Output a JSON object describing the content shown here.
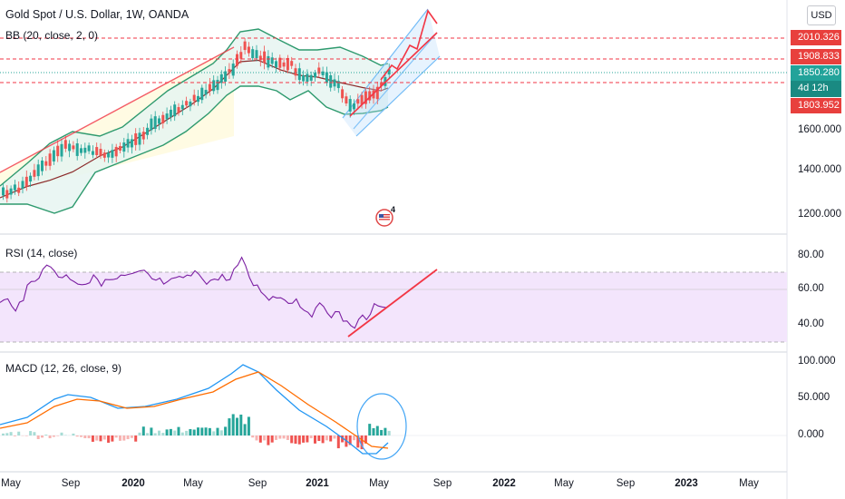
{
  "header": {
    "symbol_title": "Gold Spot / U.S. Dollar, 1W, OANDA",
    "currency_button": "USD"
  },
  "indicators": {
    "bollinger_label": "BB (20, close, 2, 0)",
    "rsi_label": "RSI (14, close)",
    "macd_label": "MACD (12, 26, close, 9)"
  },
  "price_badges": {
    "level_1": "2010.326",
    "level_2": "1908.833",
    "last_price": "1850.280",
    "countdown": "4d 12h",
    "level_3": "1803.952"
  },
  "price_axis_ticks": [
    "1600.000",
    "1400.000",
    "1200.000"
  ],
  "rsi_axis_ticks": [
    "80.00",
    "60.00",
    "40.00"
  ],
  "macd_axis_ticks": [
    "100.000",
    "50.000",
    "0.000"
  ],
  "time_axis": [
    {
      "label": "May",
      "bold": false
    },
    {
      "label": "Sep",
      "bold": false
    },
    {
      "label": "2020",
      "bold": true
    },
    {
      "label": "May",
      "bold": false
    },
    {
      "label": "Sep",
      "bold": false
    },
    {
      "label": "2021",
      "bold": true
    },
    {
      "label": "May",
      "bold": false
    },
    {
      "label": "Sep",
      "bold": false
    },
    {
      "label": "2022",
      "bold": true
    },
    {
      "label": "May",
      "bold": false
    },
    {
      "label": "Sep",
      "bold": false
    },
    {
      "label": "2023",
      "bold": true
    },
    {
      "label": "May",
      "bold": false
    }
  ],
  "events_badge": "4",
  "colors": {
    "up": "#26a69a",
    "down": "#ef5350",
    "bb_fill": "#e6f4f1",
    "bb_band": "#2e9a6e",
    "bb_basis": "#8b2a2a",
    "rsi_line": "#7b1fa2",
    "rsi_fill": "#f3e5fc",
    "macd_line": "#2196f3",
    "signal_line": "#ff6d00",
    "drawing": "#f23645"
  }
}
